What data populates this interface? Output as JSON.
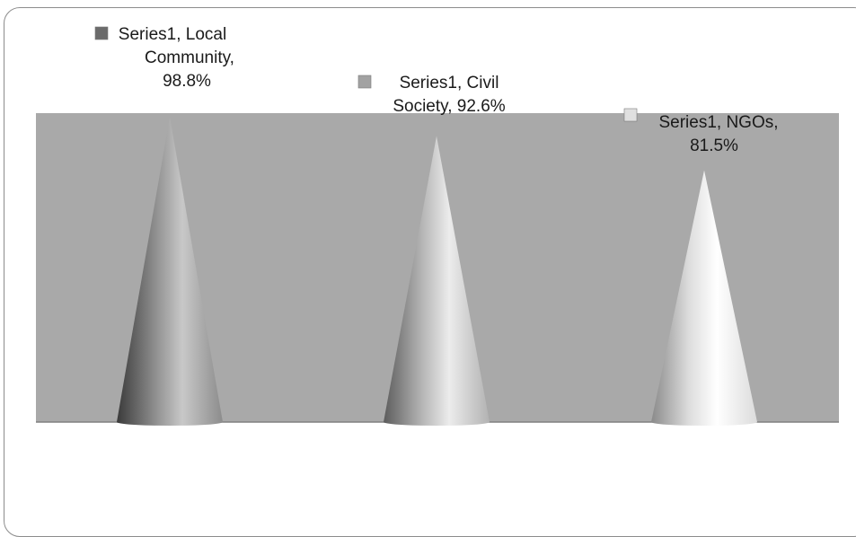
{
  "chart_data": {
    "type": "cone",
    "categories": [
      "Local Community",
      "Civil Society",
      "NGOs"
    ],
    "series": [
      {
        "name": "Series1",
        "values": [
          98.8,
          92.6,
          81.5
        ]
      }
    ],
    "value_unit": "%",
    "ylim": [
      0,
      100
    ],
    "title": "",
    "xlabel": "",
    "ylabel": "",
    "grid": false,
    "data_labels": [
      {
        "lines": [
          "Series1, Local",
          "Community,",
          "98.8%"
        ],
        "swatch": "#6b6b6b"
      },
      {
        "lines": [
          "Series1, Civil",
          "Society, 92.6%"
        ],
        "swatch": "#a2a2a2"
      },
      {
        "lines": [
          "Series1, NGOs,",
          "81.5%"
        ],
        "swatch": "#e0e0e0"
      }
    ],
    "colors": {
      "background_wall": "#a9a9a9",
      "floor_line": "#808080",
      "cone_tones": [
        {
          "dark": "#3a3a3a",
          "mid": "#8c8c8c",
          "light": "#c8c8c8"
        },
        {
          "dark": "#5c5c5c",
          "mid": "#b2b2b2",
          "light": "#ececec"
        },
        {
          "dark": "#8a8a8a",
          "mid": "#dcdcdc",
          "light": "#ffffff"
        }
      ]
    }
  }
}
